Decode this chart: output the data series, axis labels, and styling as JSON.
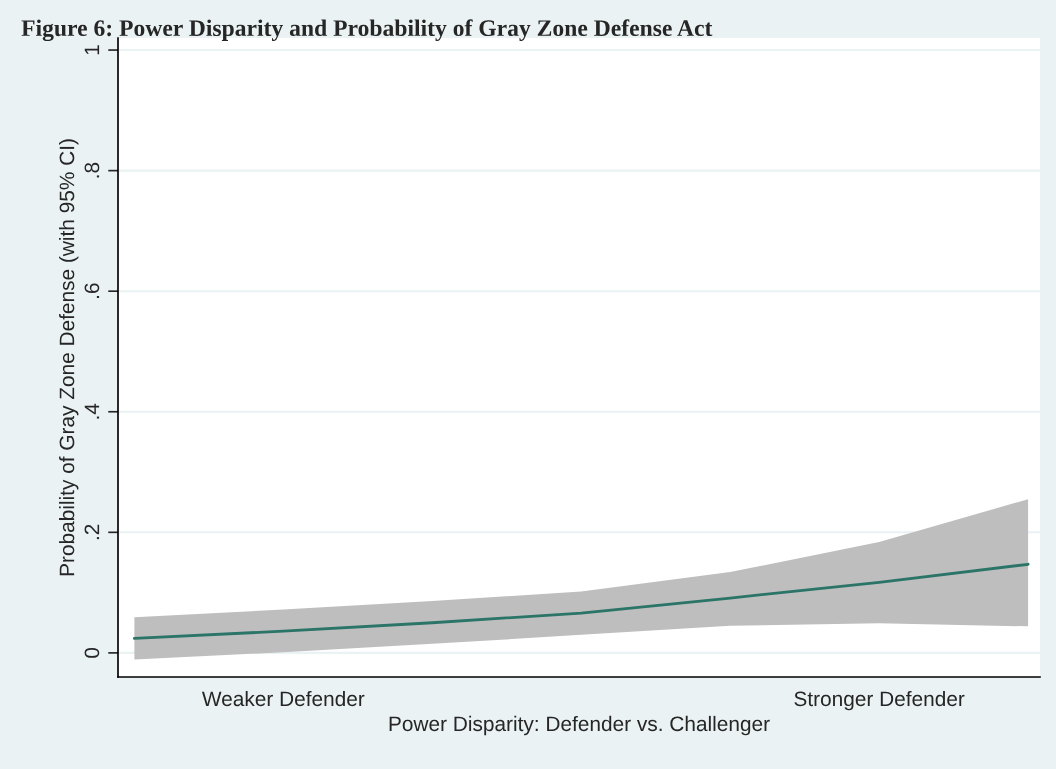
{
  "chart_data": {
    "type": "line",
    "title": "Figure 6: Power Disparity and Probability of Gray Zone Defense Act",
    "xlabel": "Power Disparity: Defender vs. Challenger",
    "ylabel": "Probability of Gray Zone Defense (with 95% CI)",
    "categories": [
      null,
      "Weaker Defender",
      null,
      null,
      null,
      "Stronger Defender",
      null
    ],
    "series": [
      {
        "color": "#2a7468",
        "values": [
          0.024,
          0.036,
          0.05,
          0.066,
          0.091,
          0.117,
          0.147
        ],
        "lower": [
          -0.011,
          0.001,
          0.015,
          0.03,
          0.045,
          0.049,
          0.044
        ],
        "upper": [
          0.059,
          0.072,
          0.086,
          0.102,
          0.134,
          0.184,
          0.255
        ]
      }
    ],
    "ylim": [
      -0.04,
      1.02
    ],
    "yticks": [
      {
        "value": 0,
        "label": "0"
      },
      {
        "value": 0.2,
        "label": ".2"
      },
      {
        "value": 0.4,
        "label": ".4"
      },
      {
        "value": 0.6,
        "label": ".6"
      },
      {
        "value": 0.8,
        "label": ".8"
      },
      {
        "value": 1,
        "label": "1"
      }
    ],
    "grid": "y",
    "legend": false
  }
}
